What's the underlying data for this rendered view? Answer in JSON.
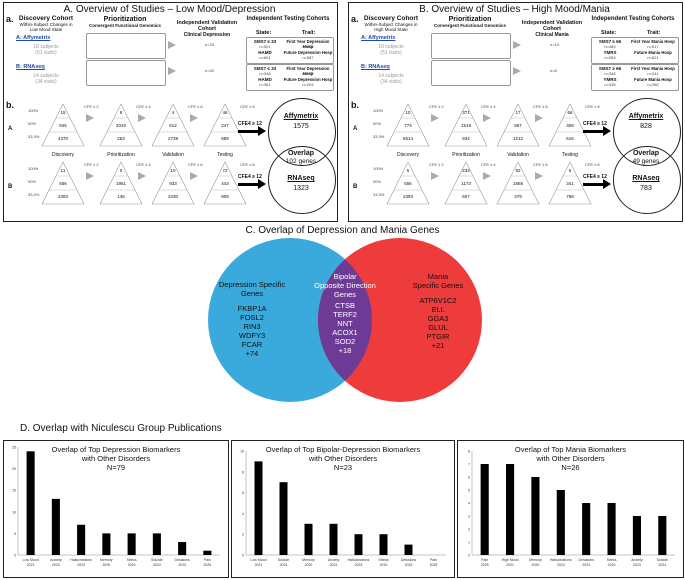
{
  "panelA": {
    "title": "A. Overview of Studies – Low Mood/Depression",
    "sub_a": "a.",
    "sub_b": "b.",
    "discovery": {
      "title": "Discovery Cohort",
      "sub": "Within-Subject Changes in Low Mood State",
      "affy_label": "A: Affymetrix",
      "affy_n": "18 subjects",
      "affy_v": "(51 visits)",
      "rna_label": "B: RNAseq",
      "rna_n": "14 subjects",
      "rna_v": "(34 visits)"
    },
    "prior": {
      "title": "Prioritization",
      "sub": "Convergent Functional Genomics"
    },
    "validation": {
      "title": "Independent Validation Cohort",
      "sub": "Clinical Depression",
      "n1": "n=33",
      "n2": "n=32"
    },
    "testing": {
      "title": "Independent Testing Cohorts",
      "state": "State:",
      "trait": "Trait:",
      "row1": {
        "state_l1": "SMS7 ≤ 33",
        "state_n1": "n=501",
        "state_l2": "HAMD",
        "state_n2": "n=601",
        "trait_l1": "First Year Depression Hosp",
        "trait_n1": "n=502",
        "trait_l2": "Future Depression Hosp",
        "trait_n2": "n=587"
      },
      "row2": {
        "state_l1": "SMS7 ≤ 33",
        "state_n1": "n=348",
        "state_l2": "HAMD",
        "state_n2": "n=361",
        "trait_l1": "First Year Depression Hosp",
        "trait_n1": "n=222",
        "trait_l2": "Future Depression Hosp",
        "trait_n2": "n=294"
      }
    },
    "stages": [
      "Discovery",
      "Prioritization",
      "Validation",
      "Testing"
    ],
    "rowA": {
      "label": "A",
      "pcts": [
        "100%",
        "90%",
        "33.3%"
      ],
      "disc": [
        "15",
        "845",
        "4370"
      ],
      "arrows": [
        "CFE ≥ 2",
        "CFE ≥ 4",
        "CFE ≥ 6",
        "CFE ≥ 8"
      ],
      "cols": [
        [
          "8",
          "2032",
          "263"
        ],
        [
          "4",
          "612",
          "2739"
        ],
        [
          "46",
          "247",
          "889"
        ]
      ]
    },
    "rowB": {
      "label": "B",
      "pcts": [
        "100%",
        "90%",
        "33.3%"
      ],
      "disc": [
        "11",
        "556",
        "2383"
      ],
      "arrows": [
        "CFE ≥ 2",
        "CFE ≥ 4",
        "CFE ≥ 6",
        "CFE ≥ 8"
      ],
      "cols": [
        [
          "0",
          "1951",
          "146"
        ],
        [
          "10",
          "933",
          "2230"
        ],
        [
          "72",
          "443",
          "909"
        ]
      ]
    },
    "cfe_top": "CFE4 ≥ 12",
    "cfe_bot": "CFE4 ≥ 12",
    "venn": {
      "top_name": "Affymetrix",
      "top_n": "1575",
      "mid_name": "Overlap",
      "mid_n": "102 genes",
      "bot_name": "RNAseq",
      "bot_n": "1323"
    }
  },
  "panelB": {
    "title": "B. Overview of Studies – High Mood/Mania",
    "sub_a": "a.",
    "sub_b": "b.",
    "discovery": {
      "title": "Discovery Cohort",
      "sub": "Within-Subject Changes in High Mood State",
      "affy_label": "A: Affymetrix",
      "affy_n": "18 subjects",
      "affy_v": "(51 visits)",
      "rna_label": "B: RNAseq",
      "rna_n": "14 subjects",
      "rna_v": "(34 visits)"
    },
    "prior": {
      "title": "Prioritization",
      "sub": "Convergent Functional Genomics"
    },
    "validation": {
      "title": "Independent Validation Cohort",
      "sub": "Clinical Mania",
      "n1": "n=14",
      "n2": "n=8"
    },
    "testing": {
      "title": "Independent Testing Cohorts",
      "state": "State:",
      "trait": "Trait:",
      "row1": {
        "state_l1": "SMS7 ≥ 66",
        "state_n1": "n=483",
        "state_l2": "YMRS",
        "state_n2": "n=583",
        "trait_l1": "First Year Mania Hosp",
        "trait_n1": "n=517",
        "trait_l2": "Future Mania Hosp",
        "trait_n2": "n=621"
      },
      "row2": {
        "state_l1": "SMS7 ≥ 66",
        "state_n1": "n=348",
        "state_l2": "YMRS",
        "state_n2": "n=335",
        "trait_l1": "First Year Mania Hosp",
        "trait_n1": "n=241",
        "trait_l2": "Future Mania Hosp",
        "trait_n2": "n=266"
      }
    },
    "stages": [
      "Discovery",
      "Prioritization",
      "Validation",
      "Testing"
    ],
    "rowA": {
      "label": "A",
      "pcts": [
        "100%",
        "90%",
        "33.3%"
      ],
      "disc": [
        "10",
        "774",
        "6514"
      ],
      "arrows": [
        "CFE ≥ 2",
        "CFE ≥ 4",
        "CFE ≥ 6",
        "CFE ≥ 8"
      ],
      "cols": [
        [
          "371",
          "1519",
          "934"
        ],
        [
          "17",
          "867",
          "1212"
        ],
        [
          "66",
          "308",
          "616"
        ]
      ]
    },
    "rowB": {
      "label": "B",
      "pcts": [
        "100%",
        "90%",
        "33.3%"
      ],
      "disc": [
        "5",
        "556",
        "2393"
      ],
      "arrows": [
        "CFE ≥ 2",
        "CFE ≥ 4",
        "CFE ≥ 6",
        "CFE ≥ 8"
      ],
      "cols": [
        [
          "234",
          "1173",
          "607"
        ],
        [
          "92",
          "1868",
          "379"
        ],
        [
          "6",
          "341",
          "768"
        ]
      ]
    },
    "cfe_top": "CFE4 ≥ 12",
    "cfe_bot": "CFE4 ≥ 12",
    "venn": {
      "top_name": "Affymetrix",
      "top_n": "828",
      "mid_name": "Overlap",
      "mid_n": "49 genes",
      "bot_name": "RNAseq",
      "bot_n": "783"
    }
  },
  "panelC": {
    "title": "C. Overlap of Depression and Mania Genes",
    "colors": {
      "left": "#3aa9dc",
      "right": "#ee3b3b",
      "mid": "#6d3b96"
    },
    "left": {
      "title1": "Depression Specific",
      "title2": "Genes",
      "genes": [
        "FKBP1A",
        "FOSL2",
        "RIN3",
        "WDFY3",
        "FCAR",
        "+74"
      ]
    },
    "mid": {
      "title1": "Bipolar",
      "title2": "Opposite Direction",
      "title3": "Genes",
      "genes": [
        "CTSB",
        "TERF2",
        "NNT",
        "ACOX1",
        "SOD2",
        "+18"
      ]
    },
    "right": {
      "title1": "Mania",
      "title2": "Specific Genes",
      "genes": [
        "ATP6V1C2",
        "ELL",
        "GGA3",
        "GLUL",
        "PTGIR",
        "+21"
      ]
    }
  },
  "panelD": {
    "title": "D.   Overlap with Niculescu Group Publications",
    "chart_data": [
      {
        "type": "bar",
        "title": "Overlap of Top Depression Biomarkers",
        "subtitle": "with Other Disorders",
        "n_label": "N=79",
        "categories": [
          "Low Mood 2021",
          "Anxiety 2023",
          "Hallucinations 2023",
          "Memory 2020",
          "Stress 2019",
          "Suicide 2024",
          "Delusions 2023",
          "Pain 2025"
        ],
        "values": [
          24,
          13,
          7,
          5,
          5,
          5,
          3,
          1
        ],
        "ylim": [
          0,
          25
        ],
        "yticks": [
          0,
          5,
          10,
          15,
          20,
          25
        ]
      },
      {
        "type": "bar",
        "title": "Overlap of Top Bipolar-Depression Biomarkers",
        "subtitle": "with Other Disorders",
        "n_label": "N=23",
        "categories": [
          "Low Mood 2021",
          "Suicide 2024",
          "Memory 2020",
          "Anxiety 2023",
          "Hallucinations 2023",
          "Stress 2019",
          "Delusions 2023",
          "Pain 2025"
        ],
        "values": [
          9,
          7,
          3,
          3,
          2,
          2,
          1,
          0
        ],
        "ylim": [
          0,
          10
        ],
        "yticks": [
          0,
          2,
          4,
          6,
          8,
          10
        ]
      },
      {
        "type": "bar",
        "title": "Overlap of Top Mania Biomarkers",
        "subtitle": "with Other Disorders",
        "n_label": "N=26",
        "categories": [
          "Pain 2025",
          "High Mood 2021",
          "Memory 2020",
          "Hallucinations 2023",
          "Delusions 2023",
          "Stress 2019",
          "Anxiety 2023",
          "Suicide 2024"
        ],
        "values": [
          7,
          7,
          6,
          5,
          4,
          4,
          3,
          3
        ],
        "ylim": [
          0,
          8
        ],
        "yticks": [
          0,
          1,
          2,
          3,
          4,
          5,
          6,
          7,
          8
        ]
      }
    ]
  }
}
